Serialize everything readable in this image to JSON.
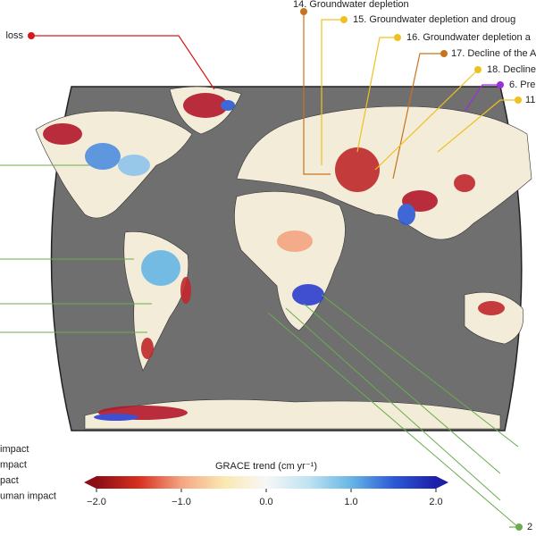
{
  "callouts": [
    {
      "text": "loss",
      "color": "#d7191c"
    },
    {
      "text": "14. Groundwater depletion",
      "color": "#c8731d"
    },
    {
      "text": "15. Groundwater depletion and droug",
      "color": "#f0c020"
    },
    {
      "text": "16. Groundwater depletion a",
      "color": "#f0c020"
    },
    {
      "text": "17. Decline of the A",
      "color": "#c8731d"
    },
    {
      "text": "18. Decline",
      "color": "#f0c020"
    },
    {
      "text": "6. Pre",
      "color": "#9b2fd6"
    },
    {
      "text": "11",
      "color": "#f0c020"
    },
    {
      "text": "2",
      "color": "#6aad4f"
    }
  ],
  "legend": [
    "impact",
    "mpact",
    "pact",
    "uman impact"
  ],
  "colorbar": {
    "title": "GRACE trend (cm yr⁻¹)",
    "lim": [
      -2,
      2
    ],
    "ticks": [
      {
        "value": -2,
        "label": "−2.0"
      },
      {
        "value": -1,
        "label": "−1.0"
      },
      {
        "value": 0,
        "label": "0.0"
      },
      {
        "value": 1,
        "label": "1.0"
      },
      {
        "value": 2,
        "label": "2.0"
      }
    ],
    "colors": [
      "#8c0d16",
      "#d7301f",
      "#f4a582",
      "#fbe8b0",
      "#f7f7f7",
      "#bfe3f0",
      "#67b6e6",
      "#2c5ad6",
      "#1c1fa8"
    ]
  }
}
